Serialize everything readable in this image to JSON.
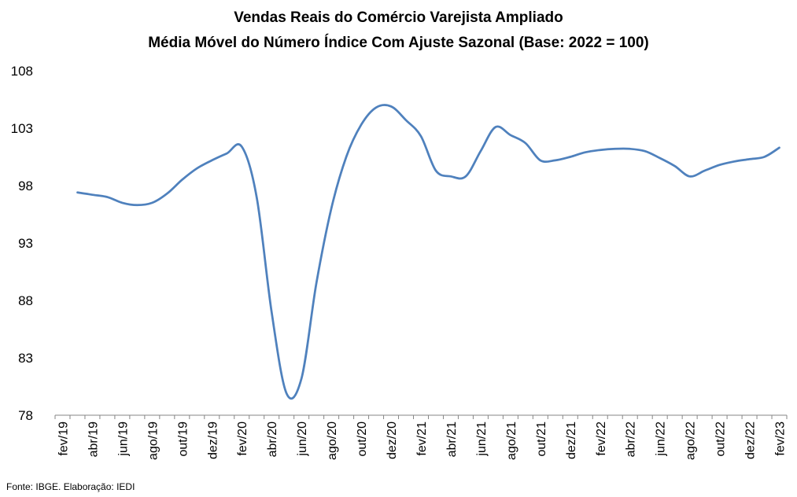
{
  "chart_data": {
    "type": "line",
    "title": "Vendas Reais do Comércio Varejista Ampliado",
    "subtitle": "Média Móvel do Número Índice Com Ajuste Sazonal (Base: 2022 = 100)",
    "source": "Fonte: IBGE. Elaboração: IEDI",
    "ylim": [
      78,
      108
    ],
    "yticks": [
      "108",
      "103",
      "98",
      "93",
      "88",
      "83",
      "78"
    ],
    "ytick_values": [
      108,
      103,
      98,
      93,
      88,
      83,
      78
    ],
    "xtick_labels": [
      "fev/19",
      "abr/19",
      "jun/19",
      "ago/19",
      "out/19",
      "dez/19",
      "fev/20",
      "abr/20",
      "jun/20",
      "ago/20",
      "out/20",
      "dez/20",
      "fev/21",
      "abr/21",
      "jun/21",
      "ago/21",
      "out/21",
      "dez/21",
      "fev/22",
      "abr/22",
      "jun/22",
      "ago/22",
      "out/22",
      "dez/22",
      "fev/23"
    ],
    "grid": false,
    "line_color": "#4F81BD",
    "series": [
      {
        "x": [
          "mar/19",
          "abr/19",
          "mai/19",
          "jun/19",
          "jul/19",
          "ago/19",
          "set/19",
          "out/19",
          "nov/19",
          "dez/19",
          "jan/20",
          "fev/20",
          "mar/20",
          "abr/20",
          "mai/20",
          "jun/20",
          "jul/20",
          "ago/20",
          "set/20",
          "out/20",
          "nov/20",
          "dez/20",
          "jan/21",
          "fev/21",
          "mar/21",
          "abr/21",
          "mai/21",
          "jun/21",
          "jul/21",
          "ago/21",
          "set/21",
          "out/21",
          "nov/21",
          "dez/21",
          "jan/22",
          "fev/22",
          "mar/22",
          "abr/22",
          "mai/22",
          "jun/22",
          "jul/22",
          "ago/22",
          "set/22",
          "out/22",
          "nov/22",
          "dez/22",
          "jan/23",
          "fev/23"
        ],
        "values": [
          97.4,
          97.2,
          97.0,
          96.5,
          96.3,
          96.5,
          97.3,
          98.5,
          99.5,
          100.2,
          100.8,
          101.4,
          97.0,
          87.0,
          79.9,
          81.2,
          89.5,
          96.0,
          100.5,
          103.3,
          104.8,
          104.9,
          103.7,
          102.3,
          99.3,
          98.8,
          98.8,
          101.0,
          103.1,
          102.4,
          101.7,
          100.2,
          100.2,
          100.5,
          100.9,
          101.1,
          101.2,
          101.2,
          101.0,
          100.4,
          99.7,
          98.8,
          99.3,
          99.8,
          100.1,
          100.3,
          100.5,
          101.3
        ]
      }
    ]
  }
}
